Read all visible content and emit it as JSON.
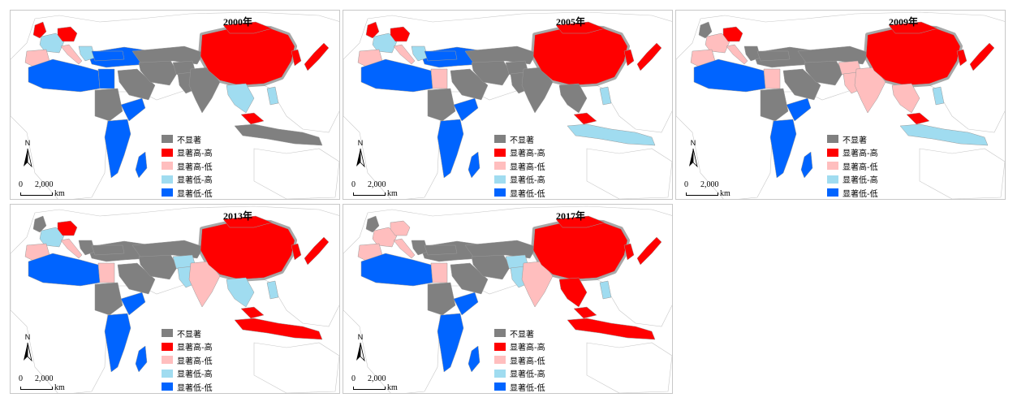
{
  "colors": {
    "not_significant": "#808080",
    "high_high": "#ff0000",
    "high_low": "#ffbebe",
    "low_high": "#a0dcf0",
    "low_low": "#0064ff",
    "background_land": "#ffffff",
    "border": "#9a9a9a",
    "china_halo": "#a8a8a8"
  },
  "legend": {
    "items": [
      {
        "key": "not_significant",
        "label": "不显著"
      },
      {
        "key": "high_high",
        "label": "显著高-高"
      },
      {
        "key": "high_low",
        "label": "显著高-低"
      },
      {
        "key": "low_high",
        "label": "显著低-高"
      },
      {
        "key": "low_low",
        "label": "显著低-低"
      }
    ]
  },
  "scale": {
    "zero": "0",
    "max": "2,000",
    "unit": "km"
  },
  "north_label": "N",
  "panels": [
    {
      "year": "2000年",
      "regions": {
        "uk": "high_high",
        "france": "low_high",
        "germany": "high_high",
        "iberia": "high_low",
        "italy": "high_low",
        "balkans": "low_high",
        "north_africa": "low_low",
        "egypt": "low_low",
        "turkey": "low_low",
        "arabia": "not_significant",
        "iran": "not_significant",
        "central_asia": "not_significant",
        "afghanistan": "not_significant",
        "pakistan": "not_significant",
        "india": "not_significant",
        "china": "high_high",
        "mongolia": "high_high",
        "korea": "high_high",
        "japan": "high_high",
        "indochina": "low_high",
        "malaysia": "high_high",
        "indonesia": "not_significant",
        "philippines": "low_high",
        "east_africa": "low_low",
        "sudan": "not_significant",
        "horn": "low_low",
        "madagascar": "low_low",
        "russia_west": "low_low"
      }
    },
    {
      "year": "2005年",
      "regions": {
        "uk": "high_high",
        "france": "low_high",
        "germany": "high_high",
        "iberia": "high_low",
        "italy": "high_low",
        "balkans": "low_high",
        "north_africa": "low_low",
        "egypt": "high_low",
        "turkey": "low_low",
        "arabia": "not_significant",
        "iran": "not_significant",
        "central_asia": "not_significant",
        "afghanistan": "not_significant",
        "pakistan": "not_significant",
        "india": "not_significant",
        "china": "high_high",
        "mongolia": "high_high",
        "korea": "high_high",
        "japan": "high_high",
        "indochina": "not_significant",
        "malaysia": "high_high",
        "indonesia": "low_high",
        "philippines": "low_high",
        "east_africa": "low_low",
        "sudan": "not_significant",
        "horn": "low_low",
        "madagascar": "low_low",
        "russia_west": "low_low"
      }
    },
    {
      "year": "2009年",
      "regions": {
        "uk": "not_significant",
        "france": "high_low",
        "germany": "high_high",
        "iberia": "high_low",
        "italy": "high_low",
        "balkans": "not_significant",
        "north_africa": "low_low",
        "egypt": "high_low",
        "turkey": "not_significant",
        "arabia": "not_significant",
        "iran": "not_significant",
        "central_asia": "not_significant",
        "afghanistan": "high_low",
        "pakistan": "high_low",
        "india": "high_low",
        "china": "high_high",
        "mongolia": "high_high",
        "korea": "high_high",
        "japan": "high_high",
        "indochina": "high_low",
        "malaysia": "high_high",
        "indonesia": "low_high",
        "philippines": "low_high",
        "east_africa": "low_low",
        "sudan": "not_significant",
        "horn": "low_low",
        "madagascar": "low_low",
        "russia_west": "not_significant"
      }
    },
    {
      "year": "2013年",
      "regions": {
        "uk": "not_significant",
        "france": "low_high",
        "germany": "high_high",
        "iberia": "high_low",
        "italy": "high_low",
        "balkans": "not_significant",
        "north_africa": "low_low",
        "egypt": "high_low",
        "turkey": "not_significant",
        "arabia": "not_significant",
        "iran": "not_significant",
        "central_asia": "not_significant",
        "afghanistan": "low_high",
        "pakistan": "low_high",
        "india": "high_low",
        "china": "high_high",
        "mongolia": "high_high",
        "korea": "high_high",
        "japan": "high_high",
        "indochina": "low_high",
        "malaysia": "high_high",
        "indonesia": "high_high",
        "philippines": "low_high",
        "east_africa": "low_low",
        "sudan": "not_significant",
        "horn": "low_low",
        "madagascar": "low_low",
        "russia_west": "not_significant"
      }
    },
    {
      "year": "2017年",
      "regions": {
        "uk": "not_significant",
        "france": "high_low",
        "germany": "high_low",
        "iberia": "high_low",
        "italy": "high_low",
        "balkans": "not_significant",
        "north_africa": "low_low",
        "egypt": "high_low",
        "turkey": "not_significant",
        "arabia": "not_significant",
        "iran": "not_significant",
        "central_asia": "not_significant",
        "afghanistan": "low_high",
        "pakistan": "low_high",
        "india": "high_low",
        "china": "high_high",
        "mongolia": "high_high",
        "korea": "high_high",
        "japan": "high_high",
        "indochina": "high_high",
        "malaysia": "high_high",
        "indonesia": "high_high",
        "philippines": "low_high",
        "east_africa": "low_low",
        "sudan": "not_significant",
        "horn": "low_low",
        "madagascar": "low_low",
        "russia_west": "not_significant"
      }
    }
  ]
}
